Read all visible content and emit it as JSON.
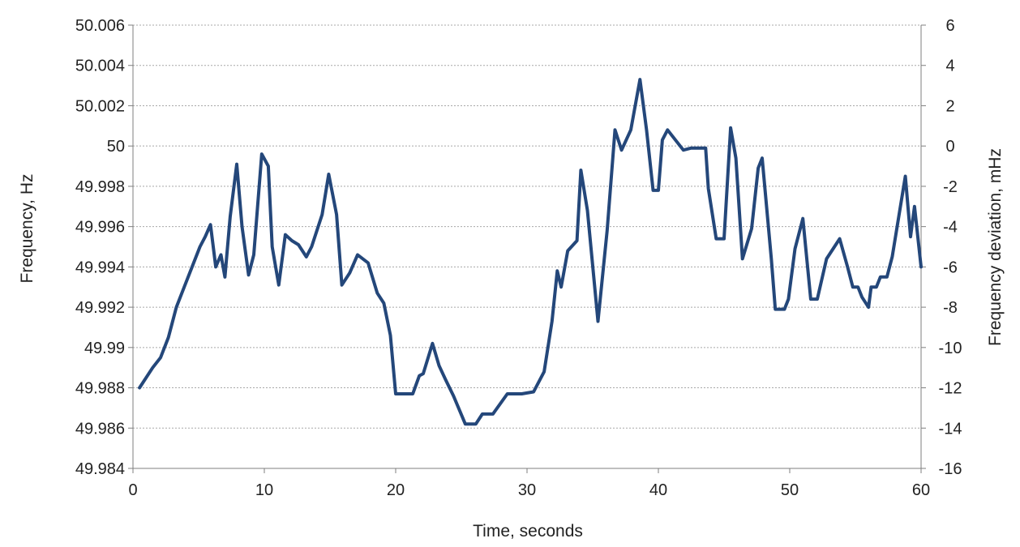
{
  "chart_data": {
    "type": "line",
    "xlabel": "Time, seconds",
    "ylabel": "Frequency, Hz",
    "y2label": "Frequency deviation, mHz",
    "xlim": [
      0,
      60
    ],
    "ylim": [
      49.984,
      50.006
    ],
    "y2lim": [
      -16,
      6
    ],
    "x_ticks": [
      "0",
      "10",
      "20",
      "30",
      "40",
      "50",
      "60"
    ],
    "y_ticks": [
      "49.984",
      "49.986",
      "49.988",
      "49.99",
      "49.992",
      "49.994",
      "49.996",
      "49.998",
      "50",
      "50.002",
      "50.004",
      "50.006"
    ],
    "y2_ticks": [
      "-16",
      "-14",
      "-12",
      "-10",
      "-8",
      "-6",
      "-4",
      "-2",
      "0",
      "2",
      "4",
      "6"
    ],
    "grid": "horizontal",
    "line_color": "#24477a",
    "series": [
      {
        "x": [
          0.5,
          1.5,
          2.1,
          2.7,
          3.3,
          3.9,
          4.5,
          5.1,
          5.5,
          5.9,
          6.3,
          6.7,
          7.0,
          7.4,
          7.9,
          8.3,
          8.8,
          9.2,
          9.8,
          10.3,
          10.6,
          11.1,
          11.6,
          12.1,
          12.6,
          13.2,
          13.6,
          14.4,
          14.9,
          15.5,
          15.9,
          16.5,
          17.1,
          17.9,
          18.6,
          19.1,
          19.6,
          20.0,
          20.4,
          21.3,
          21.8,
          22.1,
          22.8,
          23.3,
          23.8,
          24.4,
          25.3,
          26.1,
          26.6,
          27.4,
          28.5,
          29.6,
          30.5,
          31.3,
          31.9,
          32.3,
          32.6,
          33.1,
          33.8,
          34.1,
          34.6,
          35.4,
          36.1,
          36.7,
          37.2,
          37.9,
          38.6,
          39.1,
          39.6,
          40.0,
          40.3,
          40.7,
          41.9,
          42.5,
          43.1,
          43.6,
          43.8,
          44.4,
          45.0,
          45.5,
          45.9,
          46.4,
          47.1,
          47.6,
          47.9,
          48.6,
          48.9,
          49.6,
          49.9,
          50.4,
          51.0,
          51.6,
          52.1,
          52.8,
          53.3,
          53.8,
          54.4,
          54.8,
          55.2,
          55.5,
          56.0,
          56.2,
          56.6,
          56.9,
          57.4,
          57.8,
          58.3,
          58.8,
          59.2,
          59.5,
          60.0
        ],
        "y": [
          49.988,
          49.989,
          49.9895,
          49.9905,
          49.992,
          49.993,
          49.994,
          49.995,
          49.9955,
          49.9961,
          49.994,
          49.9946,
          49.9935,
          49.9965,
          49.9991,
          49.996,
          49.9936,
          49.9946,
          49.9996,
          49.999,
          49.995,
          49.9931,
          49.9956,
          49.9953,
          49.9951,
          49.9945,
          49.995,
          49.9966,
          49.9986,
          49.9966,
          49.9931,
          49.9937,
          49.9946,
          49.9942,
          49.9927,
          49.9922,
          49.9906,
          49.9877,
          49.9877,
          49.9877,
          49.9886,
          49.9887,
          49.9902,
          49.9891,
          49.9884,
          49.9876,
          49.9862,
          49.9862,
          49.9867,
          49.9867,
          49.9877,
          49.9877,
          49.9878,
          49.9888,
          49.9913,
          49.9938,
          49.993,
          49.9948,
          49.9953,
          49.9988,
          49.9968,
          49.9913,
          49.9958,
          50.0008,
          49.9998,
          50.0008,
          50.0033,
          50.0008,
          49.9978,
          49.9978,
          50.0003,
          50.0008,
          49.9998,
          49.9999,
          49.9999,
          49.9999,
          49.9979,
          49.9954,
          49.9954,
          50.0009,
          49.9994,
          49.9944,
          49.9959,
          49.9989,
          49.9994,
          49.9944,
          49.9919,
          49.9919,
          49.9924,
          49.9949,
          49.9964,
          49.9924,
          49.9924,
          49.9944,
          49.9949,
          49.9954,
          49.994,
          49.993,
          49.993,
          49.9925,
          49.992,
          49.993,
          49.993,
          49.9935,
          49.9935,
          49.9945,
          49.9965,
          49.9985,
          49.9955,
          49.997,
          49.994
        ]
      }
    ]
  }
}
